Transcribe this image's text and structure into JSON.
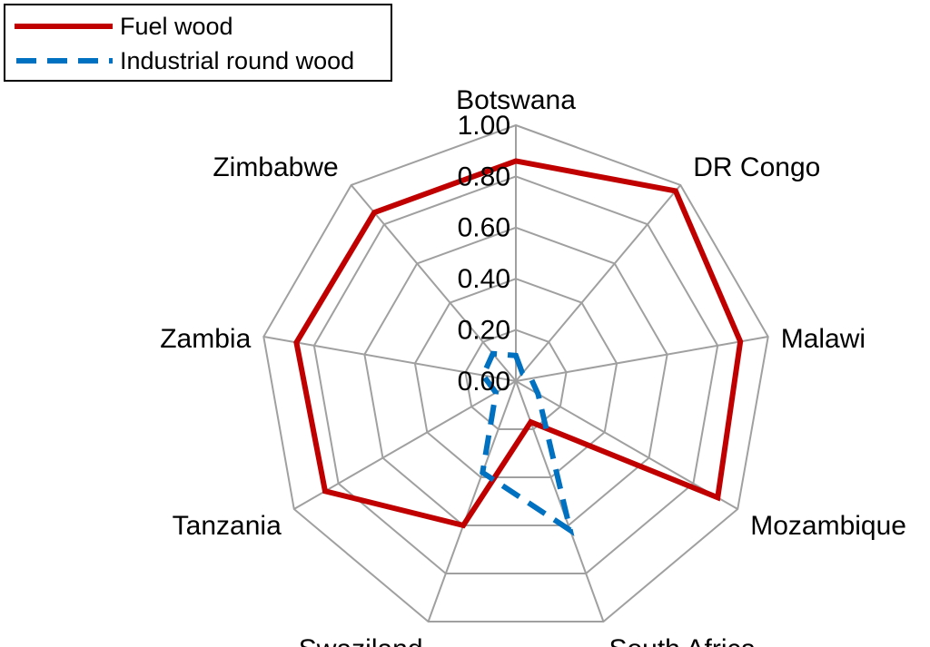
{
  "chart_data": {
    "type": "radar",
    "categories": [
      "Botswana",
      "DR Congo",
      "Malawi",
      "Mozambique",
      "South Africa",
      "Swaziland",
      "Tanzania",
      "Zambia",
      "Zimbabwe"
    ],
    "series": [
      {
        "name": "Fuel wood",
        "values": [
          0.86,
          0.97,
          0.89,
          0.91,
          0.17,
          0.6,
          0.86,
          0.87,
          0.86
        ],
        "color": "#c00000",
        "style": "solid"
      },
      {
        "name": "Industrial round wood",
        "values": [
          0.1,
          0.04,
          0.06,
          0.1,
          0.62,
          0.38,
          0.09,
          0.13,
          0.14
        ],
        "color": "#0070c0",
        "style": "dashed"
      }
    ],
    "radial_ticks": [
      "0.00",
      "0.20",
      "0.40",
      "0.60",
      "0.80",
      "1.00"
    ],
    "rlim": [
      0,
      1
    ],
    "grid": true,
    "legend_position": "top-left"
  },
  "colors": {
    "gridline": "#a0a0a0",
    "text": "#000000"
  }
}
